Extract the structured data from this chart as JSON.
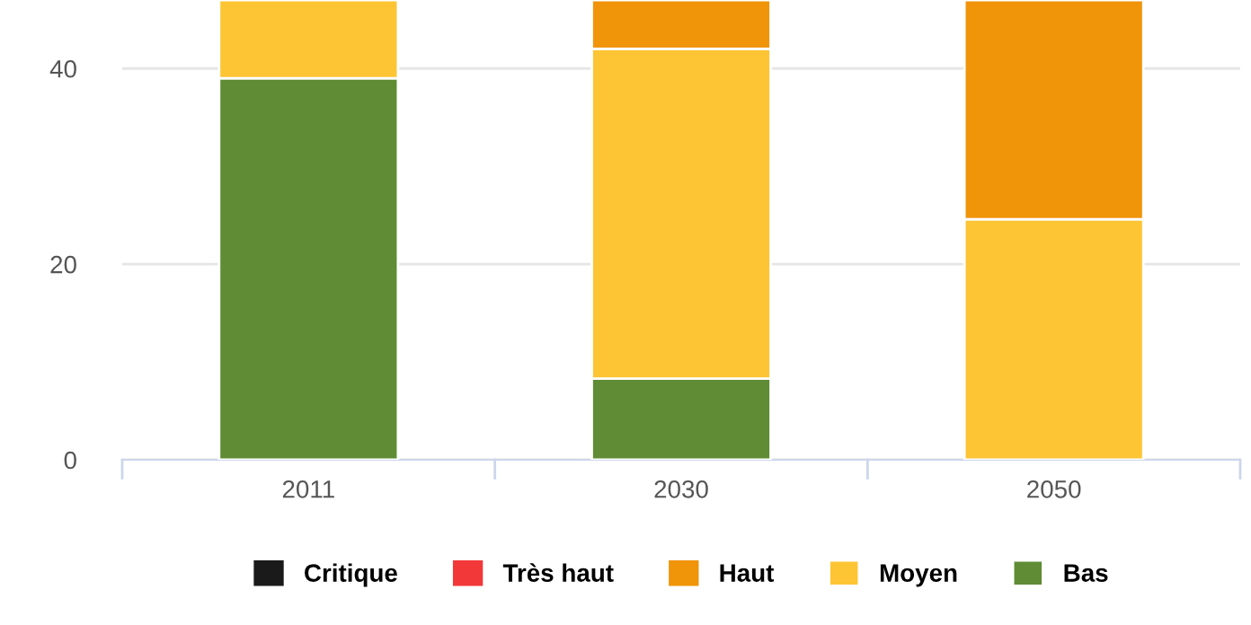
{
  "chart_data": {
    "type": "bar",
    "stacked": true,
    "categories": [
      "2011",
      "2030",
      "2050"
    ],
    "series": [
      {
        "name": "Bas",
        "color": "#5f8c34",
        "values": [
          39,
          8.3,
          0
        ]
      },
      {
        "name": "Moyen",
        "color": "#fdc534",
        "values": [
          8,
          33.7,
          24.6
        ]
      },
      {
        "name": "Haut",
        "color": "#f0940a",
        "values": [
          0,
          5,
          22.4
        ]
      },
      {
        "name": "Très haut",
        "color": "#f23838",
        "values": [
          0,
          0,
          0
        ]
      },
      {
        "name": "Critique",
        "color": "#1a1a1a",
        "values": [
          0,
          0,
          0
        ]
      }
    ],
    "ylim": [
      0,
      47
    ],
    "yticks": [
      0,
      20,
      40
    ],
    "grid": "y",
    "legend": "bottom"
  }
}
